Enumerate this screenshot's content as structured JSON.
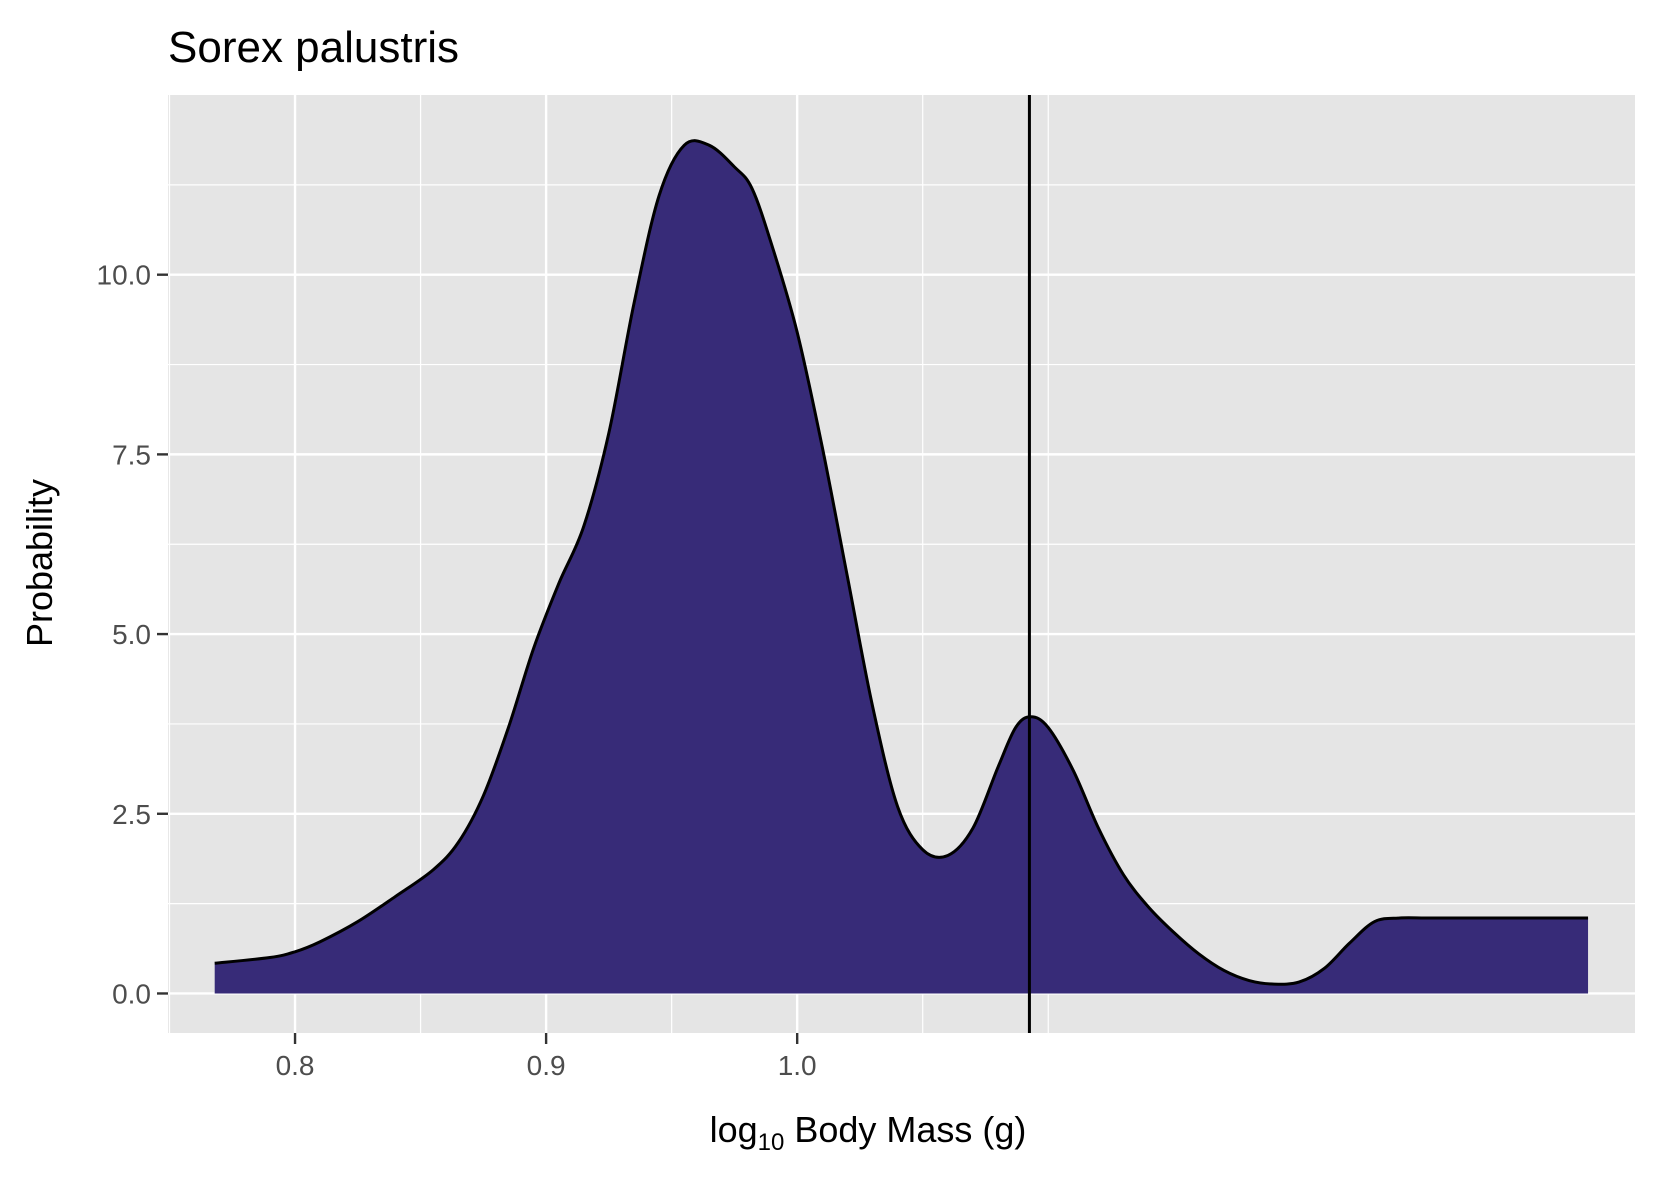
{
  "chart_data": {
    "type": "area",
    "title": "Sorex palustris",
    "xlabel": {
      "prefix": "log",
      "subscript": "10",
      "suffix": " Body Mass (g)"
    },
    "ylabel": "Probability",
    "xlim": [
      0.7494,
      1.3337
    ],
    "ylim": [
      -0.55,
      12.5
    ],
    "x_ticks": [
      {
        "value": 0.8,
        "label": "0.8"
      },
      {
        "value": 0.9,
        "label": "0.9"
      },
      {
        "value": 1.0,
        "label": "1.0"
      }
    ],
    "y_ticks": [
      {
        "value": 0.0,
        "label": "0.0"
      },
      {
        "value": 2.5,
        "label": "2.5"
      },
      {
        "value": 5.0,
        "label": "5.0"
      },
      {
        "value": 7.5,
        "label": "7.5"
      },
      {
        "value": 10.0,
        "label": "10.0"
      }
    ],
    "minor_x": [
      0.75,
      0.85,
      0.95,
      1.05,
      1.1
    ],
    "minor_y": [
      1.25,
      3.75,
      6.25,
      8.75,
      11.25
    ],
    "vline_x": 1.0925,
    "grid": true,
    "colors": {
      "fill": "#372b78",
      "line": "#000000",
      "panel": "#e5e5e5",
      "grid": "#ffffff"
    },
    "series": [
      {
        "x": [
          0.768,
          0.79,
          0.8,
          0.81,
          0.825,
          0.84,
          0.855,
          0.865,
          0.875,
          0.885,
          0.895,
          0.905,
          0.915,
          0.925,
          0.935,
          0.945,
          0.955,
          0.965,
          0.975,
          0.982,
          0.99,
          1.0,
          1.01,
          1.02,
          1.03,
          1.04,
          1.05,
          1.06,
          1.07,
          1.08,
          1.087,
          1.093,
          1.1,
          1.11,
          1.12,
          1.13,
          1.14,
          1.15,
          1.16,
          1.17,
          1.18,
          1.19,
          1.2,
          1.21,
          1.22,
          1.23,
          1.24,
          1.25,
          1.26,
          1.27,
          1.28,
          1.29,
          1.3,
          1.31,
          1.315
        ],
        "y": [
          0.42,
          0.5,
          0.58,
          0.72,
          1.0,
          1.35,
          1.72,
          2.1,
          2.75,
          3.7,
          4.8,
          5.7,
          6.5,
          7.8,
          9.6,
          11.1,
          11.8,
          11.8,
          11.5,
          11.2,
          10.4,
          9.2,
          7.6,
          5.8,
          4.0,
          2.6,
          2.0,
          1.92,
          2.3,
          3.15,
          3.7,
          3.85,
          3.7,
          3.1,
          2.3,
          1.65,
          1.2,
          0.85,
          0.55,
          0.32,
          0.18,
          0.13,
          0.16,
          0.35,
          0.7,
          1.0,
          1.05,
          1.05,
          1.05,
          1.05,
          1.05,
          1.05,
          1.05,
          1.05,
          1.05
        ]
      }
    ]
  }
}
